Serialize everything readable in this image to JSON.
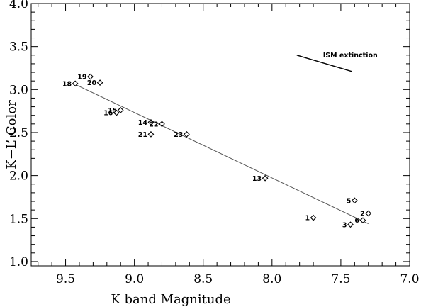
{
  "chart_data": {
    "type": "scatter",
    "title": "",
    "xlabel": "K band Magnitude",
    "ylabel": "K−L’ Color",
    "xlim": [
      9.75,
      7.0
    ],
    "ylim": [
      0.95,
      4.0
    ],
    "x_inverted": true,
    "xticks": [
      "9.5",
      "9.0",
      "8.5",
      "8.0",
      "7.5",
      "7.0"
    ],
    "yticks": [
      "1.0",
      "1.5",
      "2.0",
      "2.5",
      "3.0",
      "3.5",
      "4.0"
    ],
    "grid": false,
    "marker": "diamond",
    "points": [
      {
        "label": "1",
        "x": 7.7,
        "y": 1.51
      },
      {
        "label": "2",
        "x": 7.3,
        "y": 1.56
      },
      {
        "label": "3",
        "x": 7.43,
        "y": 1.43
      },
      {
        "label": "5",
        "x": 7.4,
        "y": 1.71
      },
      {
        "label": "6",
        "x": 7.34,
        "y": 1.48
      },
      {
        "label": "13",
        "x": 8.05,
        "y": 1.97
      },
      {
        "label": "14",
        "x": 8.88,
        "y": 2.62
      },
      {
        "label": "15",
        "x": 9.1,
        "y": 2.76
      },
      {
        "label": "16",
        "x": 9.13,
        "y": 2.73
      },
      {
        "label": "18",
        "x": 9.43,
        "y": 3.07
      },
      {
        "label": "19",
        "x": 9.32,
        "y": 3.15
      },
      {
        "label": "20",
        "x": 9.25,
        "y": 3.08
      },
      {
        "label": "21",
        "x": 8.88,
        "y": 2.48
      },
      {
        "label": "22",
        "x": 8.8,
        "y": 2.6
      },
      {
        "label": "23",
        "x": 8.62,
        "y": 2.48
      }
    ],
    "fit_line": {
      "x": [
        9.43,
        7.3
      ],
      "y": [
        3.06,
        1.44
      ]
    },
    "annotations": [
      {
        "text": "ISM extinction",
        "arrow": {
          "x": [
            7.82,
            7.42
          ],
          "y": [
            3.4,
            3.21
          ]
        }
      }
    ]
  }
}
